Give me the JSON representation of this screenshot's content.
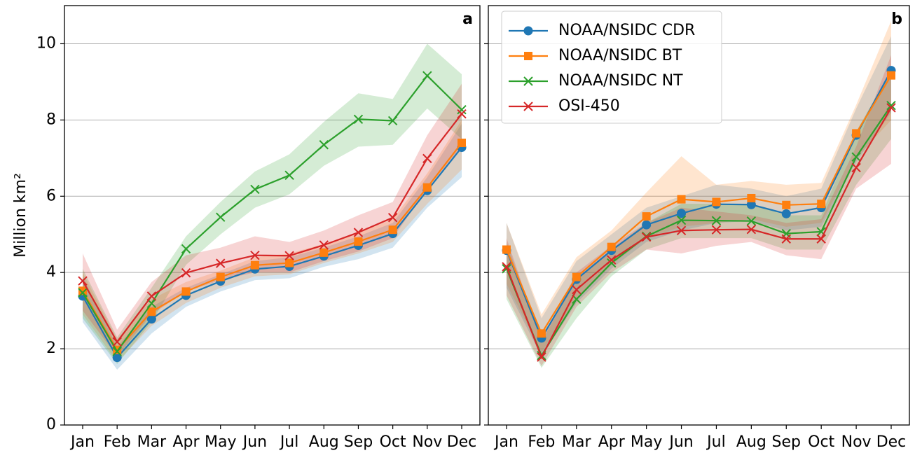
{
  "chart_data": [
    {
      "type": "line",
      "title": "a",
      "ylabel": "Million km²",
      "categories": [
        "Jan",
        "Feb",
        "Mar",
        "Apr",
        "May",
        "Jun",
        "Jul",
        "Aug",
        "Sep",
        "Oct",
        "Nov",
        "Dec"
      ],
      "ylim": [
        0,
        11
      ],
      "yticks": [
        0,
        2,
        4,
        6,
        8,
        10
      ],
      "grid": true,
      "show_ytick_labels": true,
      "series": [
        {
          "name": "NOAA/NSIDC CDR",
          "color": "#1f77b4",
          "marker": "circle",
          "values": [
            3.38,
            1.77,
            2.78,
            3.4,
            3.77,
            4.09,
            4.16,
            4.43,
            4.71,
            5.02,
            6.15,
            7.28
          ],
          "lower": [
            2.7,
            1.45,
            2.4,
            3.1,
            3.5,
            3.8,
            3.85,
            4.15,
            4.35,
            4.65,
            5.7,
            6.5
          ],
          "upper": [
            3.9,
            2.05,
            3.1,
            3.6,
            3.95,
            4.3,
            4.4,
            4.65,
            4.95,
            5.3,
            6.5,
            7.9
          ]
        },
        {
          "name": "NOAA/NSIDC BT",
          "color": "#ff7f0e",
          "marker": "square",
          "values": [
            3.52,
            1.97,
            2.97,
            3.5,
            3.88,
            4.19,
            4.25,
            4.52,
            4.81,
            5.12,
            6.23,
            7.4
          ],
          "lower": [
            2.9,
            1.65,
            2.6,
            3.2,
            3.6,
            3.9,
            3.95,
            4.25,
            4.5,
            4.8,
            5.8,
            6.7
          ],
          "upper": [
            4.0,
            2.25,
            3.3,
            3.75,
            4.05,
            4.4,
            4.5,
            4.75,
            5.05,
            5.4,
            6.6,
            8.0
          ]
        },
        {
          "name": "NOAA/NSIDC NT",
          "color": "#2ca02c",
          "marker": "x",
          "values": [
            3.47,
            1.93,
            3.19,
            4.62,
            5.45,
            6.18,
            6.55,
            7.35,
            8.02,
            7.98,
            9.16,
            8.27
          ],
          "lower": [
            2.8,
            1.6,
            2.7,
            4.2,
            5.0,
            5.7,
            6.05,
            6.8,
            7.3,
            7.35,
            8.3,
            7.5
          ],
          "upper": [
            4.1,
            2.3,
            3.6,
            4.95,
            5.85,
            6.65,
            7.1,
            7.95,
            8.7,
            8.55,
            10.0,
            9.2
          ]
        },
        {
          "name": "OSI-450",
          "color": "#d62728",
          "marker": "x",
          "values": [
            3.78,
            2.18,
            3.38,
            3.99,
            4.24,
            4.45,
            4.44,
            4.72,
            5.05,
            5.44,
            6.99,
            8.16
          ],
          "lower": [
            3.0,
            1.8,
            2.9,
            3.5,
            3.8,
            4.0,
            4.0,
            4.3,
            4.55,
            4.9,
            6.2,
            7.3
          ],
          "upper": [
            4.5,
            2.5,
            3.75,
            4.45,
            4.65,
            4.95,
            4.8,
            5.1,
            5.5,
            5.85,
            7.6,
            8.95
          ]
        }
      ]
    },
    {
      "type": "line",
      "title": "b",
      "categories": [
        "Jan",
        "Feb",
        "Mar",
        "Apr",
        "May",
        "Jun",
        "Jul",
        "Aug",
        "Sep",
        "Oct",
        "Nov",
        "Dec"
      ],
      "ylim": [
        0,
        11
      ],
      "yticks": [
        0,
        2,
        4,
        6,
        8,
        10
      ],
      "grid": true,
      "show_ytick_labels": false,
      "legend": "upper left",
      "series": [
        {
          "name": "NOAA/NSIDC CDR",
          "color": "#1f77b4",
          "marker": "circle",
          "values": [
            4.58,
            2.28,
            3.82,
            4.58,
            5.25,
            5.55,
            5.79,
            5.78,
            5.54,
            5.7,
            7.6,
            9.3
          ],
          "lower": [
            3.6,
            1.8,
            3.2,
            4.1,
            4.8,
            5.1,
            5.3,
            5.35,
            5.1,
            5.2,
            6.9,
            8.2
          ],
          "upper": [
            5.3,
            2.8,
            4.3,
            5.0,
            5.7,
            6.0,
            6.3,
            6.2,
            6.0,
            6.2,
            8.3,
            10.2
          ]
        },
        {
          "name": "NOAA/NSIDC BT",
          "color": "#ff7f0e",
          "marker": "square",
          "values": [
            4.6,
            2.4,
            3.88,
            4.67,
            5.47,
            5.92,
            5.85,
            5.95,
            5.77,
            5.8,
            7.65,
            9.17
          ],
          "lower": [
            3.7,
            1.9,
            3.3,
            4.2,
            4.9,
            5.2,
            5.3,
            5.4,
            5.2,
            5.3,
            7.0,
            8.0
          ],
          "upper": [
            5.3,
            2.9,
            4.4,
            5.1,
            6.1,
            7.05,
            6.3,
            6.4,
            6.3,
            6.35,
            8.4,
            10.6
          ]
        },
        {
          "name": "NOAA/NSIDC NT",
          "color": "#2ca02c",
          "marker": "x",
          "values": [
            4.1,
            1.82,
            3.3,
            4.25,
            4.95,
            5.37,
            5.36,
            5.35,
            5.02,
            5.07,
            7.03,
            8.38
          ],
          "lower": [
            3.3,
            1.5,
            2.8,
            3.9,
            4.6,
            4.9,
            4.9,
            4.9,
            4.6,
            4.6,
            6.3,
            7.5
          ],
          "upper": [
            4.8,
            2.2,
            3.8,
            4.6,
            5.3,
            5.8,
            5.8,
            5.8,
            5.5,
            5.5,
            7.7,
            9.3
          ]
        },
        {
          "name": "OSI-450",
          "color": "#d62728",
          "marker": "x",
          "values": [
            4.15,
            1.78,
            3.55,
            4.33,
            4.93,
            5.1,
            5.12,
            5.13,
            4.88,
            4.88,
            6.75,
            8.32
          ],
          "lower": [
            3.4,
            1.55,
            3.1,
            4.0,
            4.6,
            4.5,
            4.7,
            4.8,
            4.45,
            4.35,
            6.2,
            6.85
          ],
          "upper": [
            4.9,
            2.2,
            4.0,
            4.7,
            5.3,
            5.7,
            5.6,
            5.5,
            5.3,
            5.4,
            7.3,
            9.7
          ]
        }
      ]
    }
  ]
}
